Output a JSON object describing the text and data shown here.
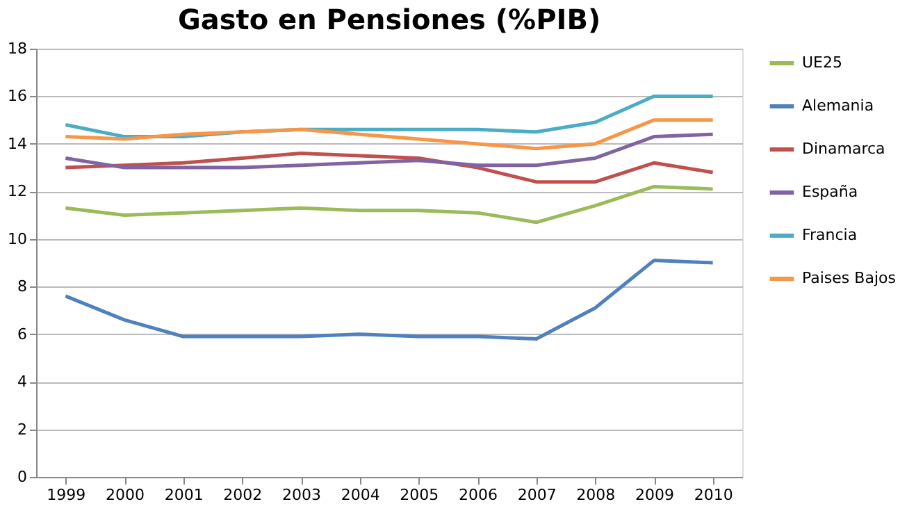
{
  "chart_data": {
    "type": "line",
    "title": "Gasto en Pensiones (%PIB)",
    "categories": [
      "1999",
      "2000",
      "2001",
      "2002",
      "2003",
      "2004",
      "2005",
      "2006",
      "2007",
      "2008",
      "2009",
      "2010"
    ],
    "series": [
      {
        "name": "UE25",
        "color": "#9bbb59",
        "values": [
          11.3,
          11.0,
          11.1,
          11.2,
          11.3,
          11.2,
          11.2,
          11.1,
          10.7,
          11.4,
          12.2,
          12.1
        ]
      },
      {
        "name": "Alemania",
        "color": "#4f81bd",
        "values": [
          7.6,
          6.6,
          5.9,
          5.9,
          5.9,
          6.0,
          5.9,
          5.9,
          5.8,
          7.1,
          9.1,
          9.0
        ]
      },
      {
        "name": "Dinamarca",
        "color": "#c0504d",
        "values": [
          13.0,
          13.1,
          13.2,
          13.4,
          13.6,
          13.5,
          13.4,
          13.0,
          12.4,
          12.4,
          13.2,
          12.8
        ]
      },
      {
        "name": "España",
        "color": "#8064a2",
        "values": [
          13.4,
          13.0,
          13.0,
          13.0,
          13.1,
          13.2,
          13.3,
          13.1,
          13.1,
          13.4,
          14.3,
          14.4
        ]
      },
      {
        "name": "Francia",
        "color": "#4bacc6",
        "values": [
          14.8,
          14.3,
          14.3,
          14.5,
          14.6,
          14.6,
          14.6,
          14.6,
          14.5,
          14.9,
          16.0,
          16.0
        ]
      },
      {
        "name": "Paises Bajos",
        "color": "#f79646",
        "values": [
          14.3,
          14.2,
          14.4,
          14.5,
          14.6,
          14.4,
          14.2,
          14.0,
          13.8,
          14.0,
          15.0,
          15.0
        ]
      }
    ],
    "ylim": [
      0,
      18
    ],
    "yticks": [
      0,
      2,
      4,
      6,
      8,
      10,
      12,
      14,
      16,
      18
    ],
    "grid": "y",
    "legend": "right",
    "marker": "none",
    "line_style": "solid"
  }
}
